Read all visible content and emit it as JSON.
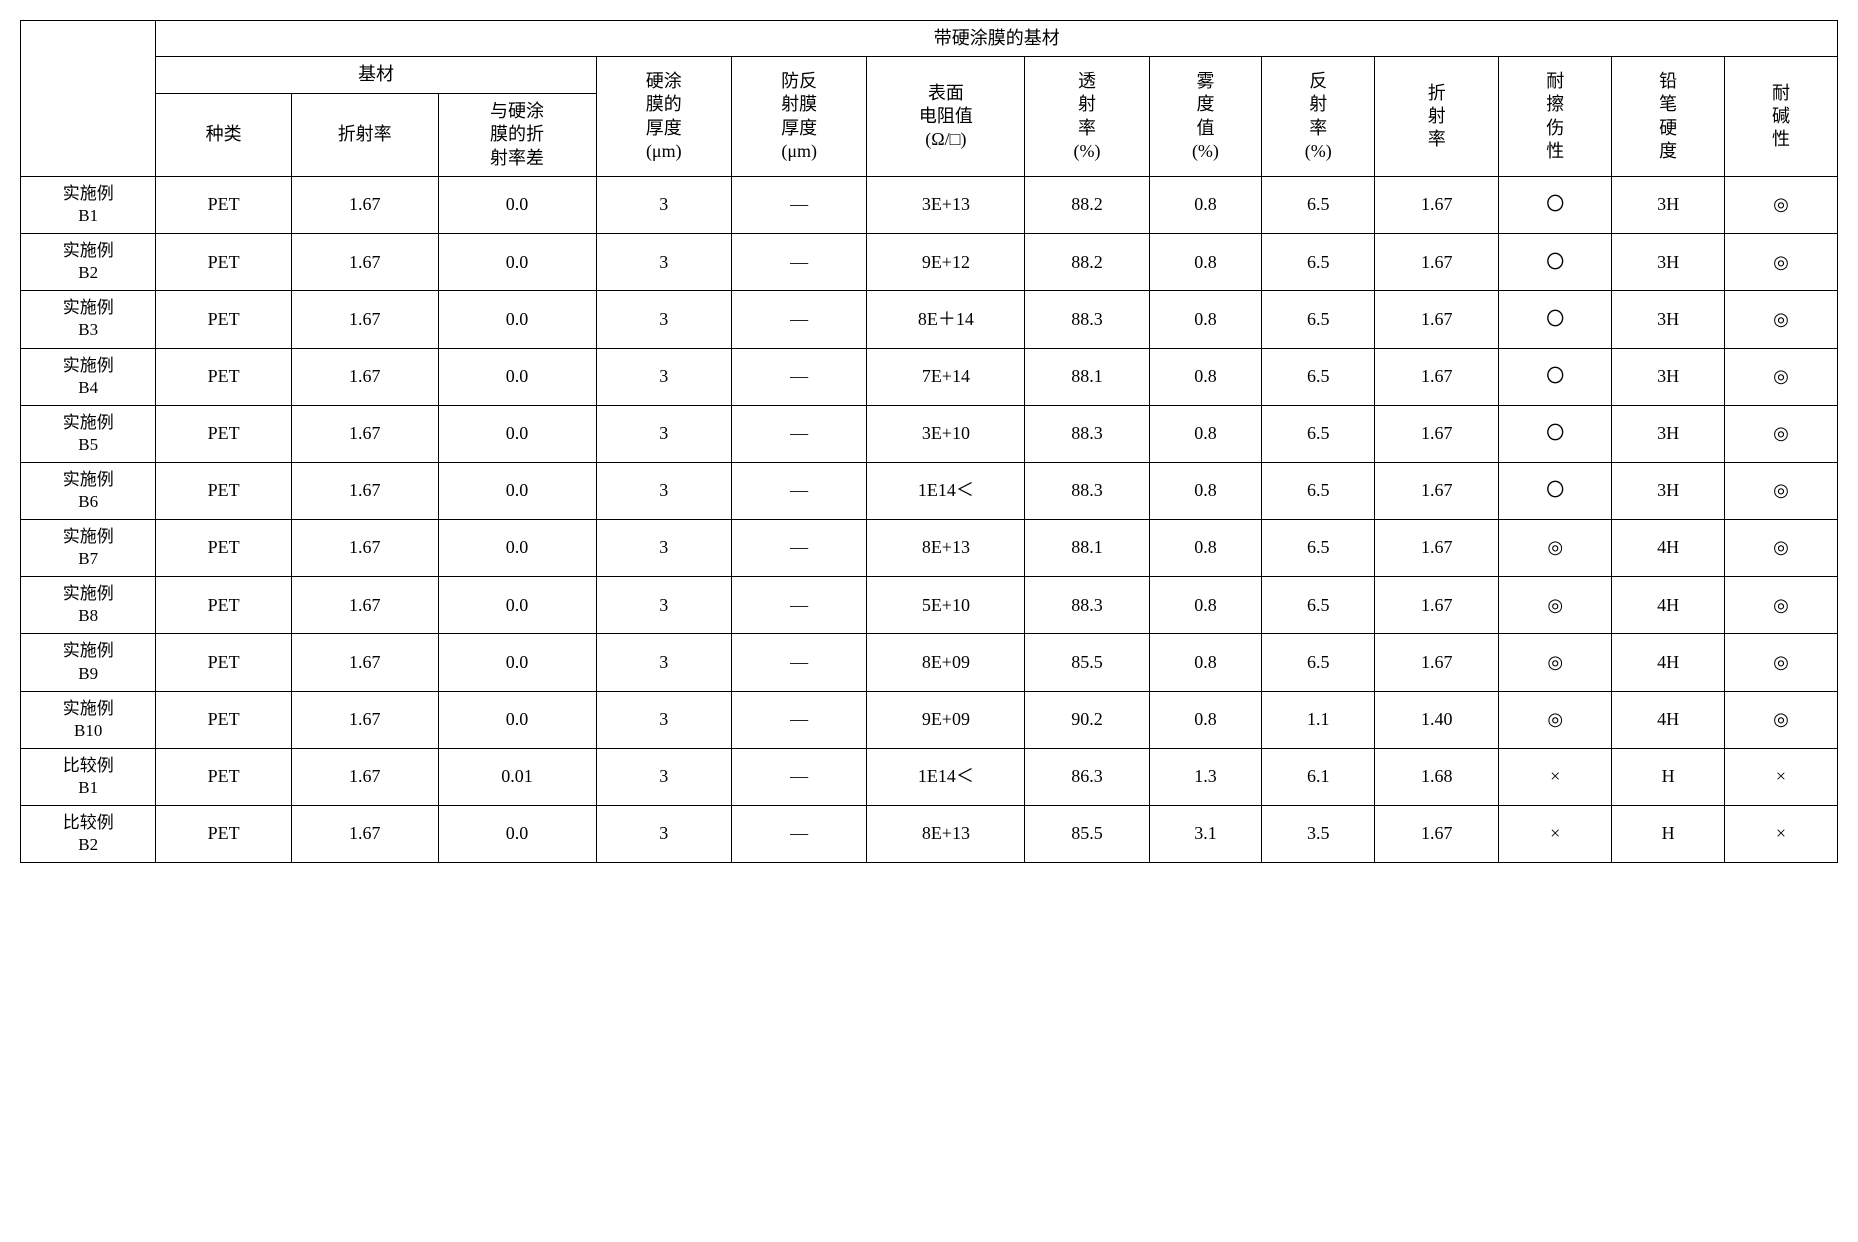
{
  "table": {
    "title": "带硬涂膜的基材",
    "subheader_substrate": "基材",
    "columns": {
      "kind": "种类",
      "refractive_index": "折射率",
      "ri_diff": "与硬涂膜的折射率差",
      "hc_thickness": "硬涂膜的厚度 (μm)",
      "ar_thickness": "防反射膜厚度 (μm)",
      "surface_resistance": "表面电阻值 (Ω/□)",
      "transmittance": "透射率 (%)",
      "haze": "雾度值 (%)",
      "reflectance": "反射率 (%)",
      "ri2": "折射率",
      "scratch": "耐擦伤性",
      "pencil": "铅笔硬度",
      "alkali": "耐碱性"
    },
    "rows": [
      {
        "label": "实施例 B1",
        "kind": "PET",
        "ri": "1.67",
        "diff": "0.0",
        "hc": "3",
        "ar": "—",
        "sr": "3E+13",
        "trans": "88.2",
        "haze": "0.8",
        "refl": "6.5",
        "ri2": "1.67",
        "scratch": "〇",
        "pencil": "3H",
        "alkali": "◎"
      },
      {
        "label": "实施例 B2",
        "kind": "PET",
        "ri": "1.67",
        "diff": "0.0",
        "hc": "3",
        "ar": "—",
        "sr": "9E+12",
        "trans": "88.2",
        "haze": "0.8",
        "refl": "6.5",
        "ri2": "1.67",
        "scratch": "〇",
        "pencil": "3H",
        "alkali": "◎"
      },
      {
        "label": "实施例 B3",
        "kind": "PET",
        "ri": "1.67",
        "diff": "0.0",
        "hc": "3",
        "ar": "—",
        "sr": "8E＋14",
        "trans": "88.3",
        "haze": "0.8",
        "refl": "6.5",
        "ri2": "1.67",
        "scratch": "〇",
        "pencil": "3H",
        "alkali": "◎"
      },
      {
        "label": "实施例 B4",
        "kind": "PET",
        "ri": "1.67",
        "diff": "0.0",
        "hc": "3",
        "ar": "—",
        "sr": "7E+14",
        "trans": "88.1",
        "haze": "0.8",
        "refl": "6.5",
        "ri2": "1.67",
        "scratch": "〇",
        "pencil": "3H",
        "alkali": "◎"
      },
      {
        "label": "实施例 B5",
        "kind": "PET",
        "ri": "1.67",
        "diff": "0.0",
        "hc": "3",
        "ar": "—",
        "sr": "3E+10",
        "trans": "88.3",
        "haze": "0.8",
        "refl": "6.5",
        "ri2": "1.67",
        "scratch": "〇",
        "pencil": "3H",
        "alkali": "◎"
      },
      {
        "label": "实施例 B6",
        "kind": "PET",
        "ri": "1.67",
        "diff": "0.0",
        "hc": "3",
        "ar": "—",
        "sr": "1E14＜",
        "trans": "88.3",
        "haze": "0.8",
        "refl": "6.5",
        "ri2": "1.67",
        "scratch": "〇",
        "pencil": "3H",
        "alkali": "◎"
      },
      {
        "label": "实施例 B7",
        "kind": "PET",
        "ri": "1.67",
        "diff": "0.0",
        "hc": "3",
        "ar": "—",
        "sr": "8E+13",
        "trans": "88.1",
        "haze": "0.8",
        "refl": "6.5",
        "ri2": "1.67",
        "scratch": "◎",
        "pencil": "4H",
        "alkali": "◎"
      },
      {
        "label": "实施例 B8",
        "kind": "PET",
        "ri": "1.67",
        "diff": "0.0",
        "hc": "3",
        "ar": "—",
        "sr": "5E+10",
        "trans": "88.3",
        "haze": "0.8",
        "refl": "6.5",
        "ri2": "1.67",
        "scratch": "◎",
        "pencil": "4H",
        "alkali": "◎"
      },
      {
        "label": "实施例 B9",
        "kind": "PET",
        "ri": "1.67",
        "diff": "0.0",
        "hc": "3",
        "ar": "—",
        "sr": "8E+09",
        "trans": "85.5",
        "haze": "0.8",
        "refl": "6.5",
        "ri2": "1.67",
        "scratch": "◎",
        "pencil": "4H",
        "alkali": "◎"
      },
      {
        "label": "实施例 B10",
        "kind": "PET",
        "ri": "1.67",
        "diff": "0.0",
        "hc": "3",
        "ar": "—",
        "sr": "9E+09",
        "trans": "90.2",
        "haze": "0.8",
        "refl": "1.1",
        "ri2": "1.40",
        "scratch": "◎",
        "pencil": "4H",
        "alkali": "◎"
      },
      {
        "label": "比较例 B1",
        "kind": "PET",
        "ri": "1.67",
        "diff": "0.01",
        "hc": "3",
        "ar": "—",
        "sr": "1E14＜",
        "trans": "86.3",
        "haze": "1.3",
        "refl": "6.1",
        "ri2": "1.68",
        "scratch": "×",
        "pencil": "H",
        "alkali": "×"
      },
      {
        "label": "比较例 B2",
        "kind": "PET",
        "ri": "1.67",
        "diff": "0.0",
        "hc": "3",
        "ar": "—",
        "sr": "8E+13",
        "trans": "85.5",
        "haze": "3.1",
        "refl": "3.5",
        "ri2": "1.67",
        "scratch": "×",
        "pencil": "H",
        "alkali": "×"
      }
    ]
  },
  "styling": {
    "border_color": "#000000",
    "background_color": "#ffffff",
    "font_family": "SimSun",
    "cell_font_size": 18,
    "border_width": 1.5
  }
}
